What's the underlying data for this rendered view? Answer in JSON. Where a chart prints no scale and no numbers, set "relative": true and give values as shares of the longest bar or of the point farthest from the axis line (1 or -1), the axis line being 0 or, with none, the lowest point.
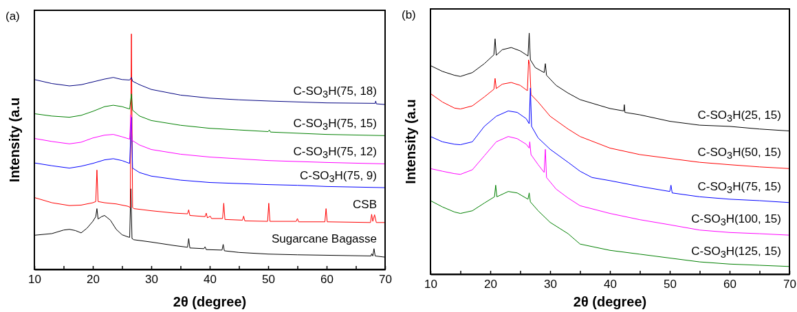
{
  "chart_data": [
    {
      "type": "line",
      "title": "(a)",
      "xlabel": "2θ (degree)",
      "ylabel": "Intensity (a.u",
      "relative": true,
      "tick_labels": "x",
      "xlim": [
        10,
        70
      ],
      "xticks": [
        10,
        {
          "value": 15,
          "label": null
        },
        20,
        {
          "value": 25,
          "label": null
        },
        30,
        {
          "value": 35,
          "label": null
        },
        40,
        {
          "value": 45,
          "label": null
        },
        50,
        {
          "value": 55,
          "label": null
        },
        60,
        {
          "value": 65,
          "label": null
        },
        70
      ],
      "series": [
        {
          "name": "Sugarcane Bagasse",
          "color": "#000000",
          "x": [
            10,
            13,
            15,
            16,
            17,
            18,
            19,
            20,
            20.5,
            20.7,
            20.9,
            21.5,
            22,
            23,
            24,
            25,
            26,
            26.3,
            26.5,
            26.7,
            27,
            30,
            34,
            36.2,
            36.4,
            36.6,
            39,
            39.2,
            39.4,
            42.1,
            42.3,
            42.5,
            45,
            50,
            55,
            60,
            67.6,
            67.7,
            67.9,
            68.1,
            68.3,
            70
          ],
          "values": [
            0.145,
            0.152,
            0.167,
            0.17,
            0.165,
            0.155,
            0.175,
            0.204,
            0.224,
            0.258,
            0.214,
            0.224,
            0.229,
            0.209,
            0.17,
            0.147,
            0.138,
            0.136,
            0.342,
            0.131,
            0.126,
            0.116,
            0.101,
            0.094,
            0.131,
            0.091,
            0.088,
            0.096,
            0.084,
            0.082,
            0.106,
            0.079,
            0.072,
            0.065,
            0.062,
            0.06,
            0.057,
            0.067,
            0.057,
            0.088,
            0.057,
            0.052
          ]
        },
        {
          "name": "CSB",
          "color": "#ff0000",
          "x": [
            10,
            13,
            16,
            18,
            20,
            20.5,
            20.7,
            20.9,
            22,
            24,
            26,
            26.4,
            26.6,
            26.8,
            27,
            30,
            34,
            36.2,
            36.4,
            36.6,
            39.2,
            39.4,
            39.6,
            40.1,
            40.3,
            42.2,
            42.4,
            42.6,
            45.6,
            45.8,
            46,
            49.9,
            50.1,
            50.3,
            54.8,
            55,
            55.2,
            59.7,
            59.9,
            60.1,
            67.5,
            67.7,
            67.9,
            68.2,
            68.5,
            70
          ],
          "values": [
            0.305,
            0.283,
            0.271,
            0.273,
            0.283,
            0.288,
            0.422,
            0.288,
            0.283,
            0.278,
            0.268,
            0.263,
            1.0,
            0.263,
            0.258,
            0.249,
            0.239,
            0.236,
            0.253,
            0.229,
            0.224,
            0.239,
            0.219,
            0.226,
            0.216,
            0.216,
            0.281,
            0.212,
            0.209,
            0.226,
            0.206,
            0.204,
            0.281,
            0.204,
            0.204,
            0.216,
            0.202,
            0.202,
            0.258,
            0.202,
            0.199,
            0.234,
            0.204,
            0.232,
            0.199,
            0.199
          ]
        },
        {
          "name": "C-SO$_{3}$H(75, 9)",
          "color": "#0000ff",
          "x": [
            10,
            13,
            16,
            18,
            20,
            22,
            23.5,
            25,
            26.3,
            26.6,
            26.8,
            28,
            30,
            35,
            40,
            50,
            55,
            60,
            70
          ],
          "values": [
            0.452,
            0.44,
            0.43,
            0.438,
            0.45,
            0.465,
            0.47,
            0.462,
            0.45,
            0.646,
            0.43,
            0.411,
            0.396,
            0.379,
            0.369,
            0.36,
            0.357,
            0.352,
            0.347
          ]
        },
        {
          "name": "C-SO$_{3}$H(75, 12)",
          "color": "#ff00ff",
          "x": [
            10,
            13,
            16,
            18,
            20,
            22,
            23.5,
            25,
            26.3,
            26.5,
            26.7,
            28,
            30,
            35,
            40,
            50,
            60,
            70
          ],
          "values": [
            0.556,
            0.543,
            0.533,
            0.54,
            0.558,
            0.57,
            0.573,
            0.563,
            0.553,
            0.656,
            0.548,
            0.528,
            0.509,
            0.489,
            0.477,
            0.462,
            0.454,
            0.448
          ]
        },
        {
          "name": "C-SO$_{3}$H(75, 15)",
          "color": "#008000",
          "x": [
            10,
            13,
            16,
            18,
            20,
            22,
            23.5,
            25,
            26.3,
            26.6,
            26.8,
            28,
            30,
            35,
            40,
            45,
            50,
            50.2,
            50.4,
            60,
            70
          ],
          "values": [
            0.661,
            0.651,
            0.646,
            0.654,
            0.671,
            0.691,
            0.697,
            0.691,
            0.681,
            0.745,
            0.676,
            0.651,
            0.632,
            0.612,
            0.599,
            0.592,
            0.585,
            0.592,
            0.583,
            0.573,
            0.568
          ]
        },
        {
          "name": "C-SO$_{3}$H(75, 18)",
          "color": "#000080",
          "x": [
            10,
            13,
            16,
            18,
            20,
            22,
            23.5,
            25,
            26.3,
            26.6,
            26.8,
            28,
            30,
            35,
            40,
            45,
            50,
            60,
            68.3,
            68.4,
            68.5,
            70
          ],
          "values": [
            0.806,
            0.789,
            0.779,
            0.784,
            0.796,
            0.808,
            0.815,
            0.806,
            0.804,
            0.815,
            0.799,
            0.784,
            0.764,
            0.74,
            0.727,
            0.72,
            0.715,
            0.707,
            0.705,
            0.715,
            0.703,
            0.7
          ]
        }
      ]
    },
    {
      "type": "line",
      "title": "(b)",
      "xlabel": "2θ (degree)",
      "ylabel": "Intensity (a.u",
      "relative": true,
      "tick_labels": "x",
      "xlim": [
        10,
        70
      ],
      "xticks": [
        10,
        {
          "value": 15,
          "label": null
        },
        20,
        {
          "value": 25,
          "label": null
        },
        30,
        {
          "value": 35,
          "label": null
        },
        40,
        {
          "value": 45,
          "label": null
        },
        50,
        {
          "value": 55,
          "label": null
        },
        60,
        {
          "value": 65,
          "label": null
        },
        70
      ],
      "series": [
        {
          "name": "C-SO$_{3}$H(25, 15)",
          "color": "#000000",
          "x": [
            10,
            12,
            14,
            15,
            17,
            19,
            20.6,
            20.8,
            21,
            22,
            23.5,
            25,
            26.3,
            26.5,
            26.7,
            27.5,
            29,
            29.2,
            29.4,
            31,
            33,
            35,
            40,
            42.3,
            42.4,
            42.5,
            45,
            50,
            55,
            60,
            65,
            70
          ],
          "values": [
            0.865,
            0.841,
            0.825,
            0.82,
            0.836,
            0.873,
            0.91,
            0.976,
            0.908,
            0.931,
            0.94,
            0.926,
            0.905,
            1.0,
            0.889,
            0.857,
            0.836,
            0.873,
            0.825,
            0.783,
            0.751,
            0.724,
            0.687,
            0.677,
            0.703,
            0.671,
            0.661,
            0.634,
            0.618,
            0.613,
            0.602,
            0.594
          ]
        },
        {
          "name": "C-SO$_{3}$H(50, 15)",
          "color": "#ff0000",
          "x": [
            10,
            12,
            14,
            15,
            17,
            19,
            20.6,
            20.8,
            21,
            22,
            23.5,
            25,
            26.2,
            26.4,
            26.6,
            26.8,
            28,
            30,
            33,
            35,
            40,
            45,
            50,
            55,
            60,
            65,
            70
          ],
          "values": [
            0.749,
            0.714,
            0.689,
            0.685,
            0.698,
            0.735,
            0.767,
            0.812,
            0.77,
            0.788,
            0.795,
            0.783,
            0.761,
            0.889,
            0.867,
            0.745,
            0.714,
            0.655,
            0.602,
            0.571,
            0.523,
            0.496,
            0.48,
            0.464,
            0.454,
            0.445,
            0.438
          ]
        },
        {
          "name": "C-SO$_{3}$H(75, 15)",
          "color": "#0000ff",
          "x": [
            10,
            12,
            14,
            15,
            17,
            19,
            21,
            23,
            24.5,
            26,
            26.5,
            26.7,
            26.9,
            28,
            30,
            33,
            35,
            37,
            40,
            45,
            50,
            50.2,
            50.4,
            55,
            60,
            65,
            70
          ],
          "values": [
            0.571,
            0.549,
            0.539,
            0.537,
            0.549,
            0.613,
            0.655,
            0.677,
            0.671,
            0.645,
            0.624,
            0.772,
            0.613,
            0.565,
            0.518,
            0.464,
            0.427,
            0.401,
            0.388,
            0.364,
            0.343,
            0.369,
            0.337,
            0.321,
            0.311,
            0.305,
            0.297
          ]
        },
        {
          "name": "C-SO$_{3}$H(100, 15)",
          "color": "#ff00ff",
          "x": [
            10,
            12,
            14,
            15,
            17,
            19,
            21,
            23,
            24.5,
            26,
            26.5,
            26.6,
            26.8,
            28,
            29,
            29.2,
            29.4,
            31,
            33,
            35,
            40,
            45,
            50,
            55,
            60,
            65,
            70
          ],
          "values": [
            0.438,
            0.427,
            0.417,
            0.414,
            0.433,
            0.491,
            0.549,
            0.571,
            0.562,
            0.539,
            0.523,
            0.549,
            0.496,
            0.454,
            0.422,
            0.518,
            0.401,
            0.353,
            0.316,
            0.284,
            0.252,
            0.226,
            0.205,
            0.183,
            0.173,
            0.168,
            0.162
          ]
        },
        {
          "name": "C-SO$_{3}$H(125, 15)",
          "color": "#008000",
          "x": [
            10,
            12,
            14,
            15,
            17,
            19,
            20.7,
            20.9,
            21.1,
            23,
            24.5,
            26.3,
            26.5,
            26.7,
            28,
            30,
            33,
            35,
            40,
            45,
            50,
            55,
            60,
            65,
            70
          ],
          "values": [
            0.305,
            0.279,
            0.258,
            0.252,
            0.263,
            0.295,
            0.321,
            0.369,
            0.321,
            0.343,
            0.337,
            0.311,
            0.337,
            0.3,
            0.263,
            0.215,
            0.168,
            0.125,
            0.099,
            0.083,
            0.067,
            0.051,
            0.042,
            0.037,
            0.032
          ]
        }
      ]
    }
  ]
}
